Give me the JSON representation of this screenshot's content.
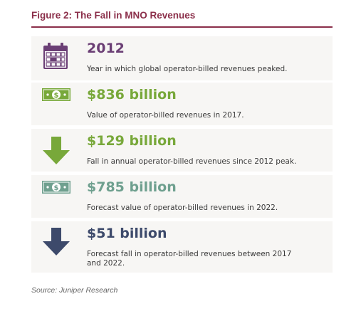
{
  "figure": {
    "title": "Figure 2: The Fall in MNO Revenues",
    "source": "Source: Juniper Research"
  },
  "colors": {
    "title": "#8b2f4a",
    "purple": "#6b3f75",
    "green": "#78a83a",
    "teal": "#6fa08f",
    "navy": "#3d4a6b"
  },
  "stats": [
    {
      "icon": "calendar-icon",
      "value": "2012",
      "description": "Year in which global operator-billed revenues peaked."
    },
    {
      "icon": "banknote-icon",
      "value": "$836 billion",
      "description": "Value of operator-billed revenues in 2017."
    },
    {
      "icon": "down-arrow-icon",
      "value": "$129 billion",
      "description": "Fall in annual operator-billed revenues since 2012 peak."
    },
    {
      "icon": "banknote-icon",
      "value": "$785 billion",
      "description": "Forecast value of operator-billed revenues in 2022."
    },
    {
      "icon": "down-arrow-icon",
      "value": "$51 billion",
      "description": "Forecast fall in operator-billed revenues between 2017 and 2022."
    }
  ]
}
